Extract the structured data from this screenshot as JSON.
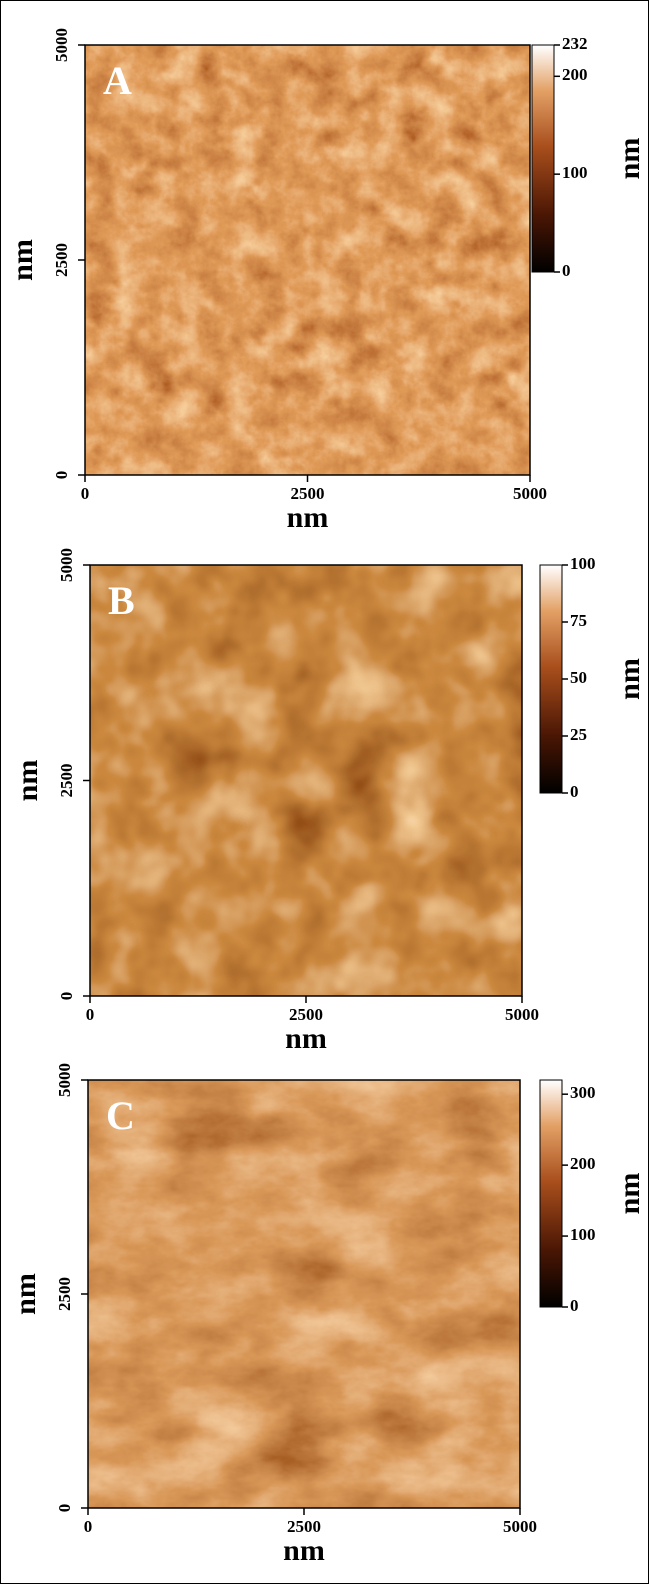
{
  "panels": [
    {
      "label": "A",
      "xlabel": "nm",
      "ylabel": "nm",
      "xlim": [
        0,
        5000
      ],
      "ylim": [
        0,
        5000
      ],
      "xticks": [
        0,
        2500,
        5000
      ],
      "yticks": [
        0,
        2500,
        5000
      ],
      "colorbar": {
        "label": "nm",
        "lim": [
          0,
          232
        ],
        "ticks": [
          0,
          100,
          200,
          232
        ]
      }
    },
    {
      "label": "B",
      "xlabel": "nm",
      "ylabel": "nm",
      "xlim": [
        0,
        5000
      ],
      "ylim": [
        0,
        5000
      ],
      "xticks": [
        0,
        2500,
        5000
      ],
      "yticks": [
        0,
        2500,
        5000
      ],
      "colorbar": {
        "label": "nm",
        "lim": [
          0,
          100
        ],
        "ticks": [
          0,
          25,
          50,
          75,
          100
        ]
      }
    },
    {
      "label": "C",
      "xlabel": "nm",
      "ylabel": "nm",
      "xlim": [
        0,
        5000
      ],
      "ylim": [
        0,
        5000
      ],
      "xticks": [
        0,
        2500,
        5000
      ],
      "yticks": [
        0,
        2500,
        5000
      ],
      "colorbar": {
        "label": "nm",
        "lim": [
          0,
          320
        ],
        "ticks": [
          0,
          100,
          200,
          300
        ]
      }
    }
  ]
}
